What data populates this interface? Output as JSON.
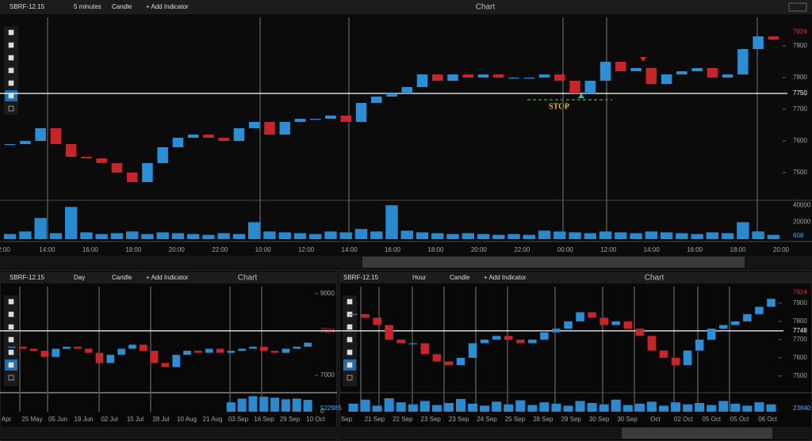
{
  "main": {
    "symbol": "SBRF-12.15",
    "interval": "5 minutes",
    "style": "Candle",
    "add_indicator": "+ Add Indicator",
    "title": "Chart",
    "ylim": [
      7415,
      7990
    ],
    "yticks": [
      7500,
      7600,
      7700,
      7800,
      7900
    ],
    "level": 7750,
    "last": 7924,
    "annotation": "STOP",
    "x_labels": [
      "2:00",
      "14:00",
      "16:00",
      "18:00",
      "20:00",
      "22:00",
      "10:00",
      "12:00",
      "14:00",
      "16:00",
      "18:00",
      "20:00",
      "22:00",
      "00:00",
      "12:00",
      "14:00",
      "16:00",
      "18:00",
      "20:00"
    ],
    "prices": [
      7590,
      7600,
      7640,
      7590,
      7550,
      7545,
      7530,
      7500,
      7470,
      7530,
      7580,
      7610,
      7620,
      7610,
      7600,
      7640,
      7660,
      7620,
      7660,
      7670,
      7670,
      7680,
      7660,
      7720,
      7740,
      7750,
      7770,
      7810,
      7790,
      7810,
      7800,
      7810,
      7800,
      7800,
      7800,
      7810,
      7790,
      7750,
      7790,
      7850,
      7820,
      7830,
      7780,
      7810,
      7820,
      7830,
      7800,
      7810,
      7890,
      7930,
      7920
    ],
    "volumes": [
      6000,
      9000,
      25000,
      7000,
      38000,
      8000,
      6000,
      7000,
      9000,
      6000,
      8000,
      7000,
      6000,
      5000,
      7000,
      6000,
      20000,
      9000,
      8000,
      7000,
      6000,
      9000,
      8000,
      12000,
      9000,
      40000,
      10000,
      8000,
      7000,
      6000,
      7000,
      6000,
      5000,
      6000,
      5000,
      10000,
      9000,
      8000,
      7000,
      9000,
      8000,
      7000,
      9000,
      8000,
      7000,
      6000,
      8000,
      7000,
      20000,
      9000,
      5000
    ],
    "vol_lim": [
      0,
      43000
    ],
    "vol_ticks": [
      20000,
      40000
    ],
    "vol_last": 608
  },
  "day": {
    "symbol": "SBRF-12.15",
    "interval": "Day",
    "style": "Candle",
    "add_indicator": "+ Add Indicator",
    "title": "Chart",
    "ylim": [
      6610,
      9175
    ],
    "yticks": [
      7000,
      9000
    ],
    "last": 7924,
    "x_labels": [
      "Apr",
      "25 May",
      "05 Jun",
      "19 Jun",
      "02 Jul",
      "15 Jul",
      "28 Jul",
      "10 Aug",
      "21 Aug",
      "03 Sep",
      "16 Sep",
      "29 Sep",
      "10 Oct"
    ],
    "prices": [
      7700,
      7650,
      7600,
      7450,
      7650,
      7700,
      7650,
      7550,
      7300,
      7500,
      7650,
      7750,
      7600,
      7300,
      7200,
      7500,
      7600,
      7550,
      7650,
      7550,
      7600,
      7650,
      7700,
      7600,
      7550,
      7650,
      7700,
      7800
    ],
    "volumes": [
      0,
      0,
      0,
      0,
      0,
      0,
      0,
      0,
      0,
      0,
      0,
      0,
      0,
      0,
      0,
      0,
      0,
      0,
      0,
      0,
      300000,
      420000,
      500000,
      480000,
      450000,
      400000,
      420000,
      380000
    ],
    "vol_lim": [
      0,
      560000
    ],
    "vol_ticks": [
      0
    ],
    "vol_last": 522985
  },
  "hour": {
    "symbol": "SBRF-12.15",
    "interval": "Hour",
    "style": "Candle",
    "add_indicator": "+ Add Indicator",
    "title": "Chart",
    "ylim": [
      7417,
      7991
    ],
    "yticks": [
      7500,
      7600,
      7700,
      7800,
      7900
    ],
    "level": 7748,
    "last": 7924,
    "x_labels": [
      "Sep",
      "21 Sep",
      "22 Sep",
      "23 Sep",
      "23 Sep",
      "24 Sep",
      "25 Sep",
      "28 Sep",
      "29 Sep",
      "30 Sep",
      "30 Sep",
      "Oct",
      "02 Oct",
      "05 Oct",
      "05 Oct",
      "06 Oct"
    ],
    "prices": [
      7840,
      7820,
      7780,
      7700,
      7680,
      7680,
      7620,
      7580,
      7560,
      7600,
      7680,
      7700,
      7720,
      7700,
      7680,
      7700,
      7740,
      7760,
      7800,
      7850,
      7820,
      7780,
      7800,
      7760,
      7720,
      7640,
      7600,
      7560,
      7640,
      7700,
      7760,
      7780,
      7800,
      7840,
      7880,
      7924
    ],
    "volumes": [
      12000,
      18000,
      9000,
      20000,
      14000,
      11000,
      16000,
      10000,
      13000,
      19000,
      12000,
      9000,
      15000,
      11000,
      17000,
      10000,
      14000,
      12000,
      9000,
      16000,
      13000,
      11000,
      18000,
      10000,
      12000,
      15000,
      9000,
      14000,
      11000,
      13000,
      10000,
      16000,
      12000,
      9000,
      14000,
      11000
    ],
    "vol_lim": [
      0,
      26000
    ],
    "vol_last": 23840
  }
}
